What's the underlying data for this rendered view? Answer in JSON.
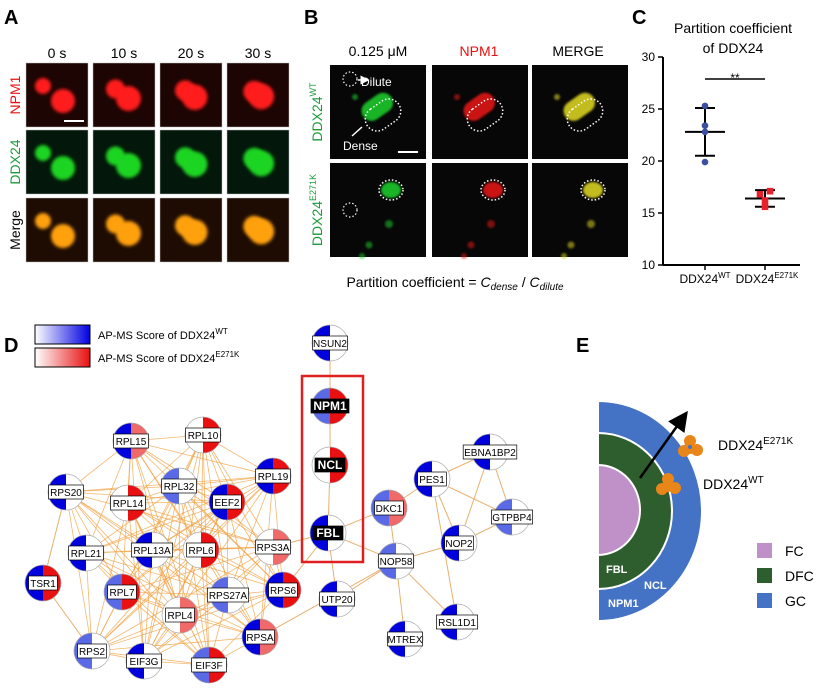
{
  "panel_labels": {
    "a": "A",
    "b": "B",
    "c": "C",
    "d": "D",
    "e": "E"
  },
  "panel_a": {
    "time_labels": [
      "0 s",
      "10 s",
      "20 s",
      "30 s"
    ],
    "row_labels": [
      "NPM1",
      "DDX24",
      "Merge"
    ]
  },
  "panel_b": {
    "column_headers": [
      "0.125 μM",
      "NPM1",
      "MERGE"
    ],
    "row_labels": [
      {
        "base": "DDX24",
        "sup": "WT"
      },
      {
        "base": "DDX24",
        "sup": "E271K"
      }
    ],
    "annotations": {
      "dilute": "Dilute",
      "dense": "Dense"
    },
    "formula": {
      "prefix": "Partition coefficient = ",
      "c": "C",
      "dense": "dense",
      "sep": " / ",
      "dilute": "dilute"
    }
  },
  "chart_data": {
    "type": "scatter",
    "title": [
      "Partition coefficient",
      "of DDX24"
    ],
    "categories": [
      {
        "base": "DDX24",
        "sup": "WT"
      },
      {
        "base": "DDX24",
        "sup": "E271K"
      }
    ],
    "series": [
      {
        "name": "DDX24 WT",
        "color": "#3b4fa0",
        "marker": "circle",
        "values": [
          25.3,
          23.4,
          22.8,
          19.9
        ],
        "mean": 22.8,
        "sd": [
          20.5,
          25.1
        ]
      },
      {
        "name": "DDX24 E271K",
        "color": "#e8202a",
        "marker": "square",
        "values": [
          17.1,
          16.8,
          16.2,
          15.6
        ],
        "mean": 16.4,
        "sd": [
          15.6,
          17.2
        ]
      }
    ],
    "ylim": [
      10,
      30
    ],
    "yticks": [
      10,
      15,
      20,
      25,
      30
    ],
    "significance": "**",
    "xlabel": "",
    "ylabel": ""
  },
  "network": {
    "legend": [
      {
        "text": "AP-MS Score of DDX24",
        "sup": "WT",
        "color": "#0000e0"
      },
      {
        "text": "AP-MS Score of DDX24",
        "sup": "E271K",
        "color": "#e81010"
      }
    ],
    "score_colors": {
      "wt": {
        "high": "#0000dd",
        "mid": "#5a6ae6",
        "none": "#ffffff"
      },
      "e271k": {
        "high": "#e81010",
        "mid": "#f06a6a",
        "none": "#ffffff"
      }
    },
    "highlighted": [
      "NPM1",
      "NCL",
      "FBL"
    ],
    "nodes": [
      {
        "id": "NSUN2",
        "wt": "high",
        "e271k": "none"
      },
      {
        "id": "NPM1",
        "wt": "mid",
        "e271k": "high"
      },
      {
        "id": "NCL",
        "wt": "none",
        "e271k": "high"
      },
      {
        "id": "FBL",
        "wt": "high",
        "e271k": "none"
      },
      {
        "id": "RPL15",
        "wt": "high",
        "e271k": "mid"
      },
      {
        "id": "RPL10",
        "wt": "none",
        "e271k": "high"
      },
      {
        "id": "RPL19",
        "wt": "high",
        "e271k": "high"
      },
      {
        "id": "RPS20",
        "wt": "high",
        "e271k": "none"
      },
      {
        "id": "RPL32",
        "wt": "mid",
        "e271k": "none"
      },
      {
        "id": "RPL14",
        "wt": "none",
        "e271k": "high"
      },
      {
        "id": "EEF2",
        "wt": "high",
        "e271k": "high"
      },
      {
        "id": "RPL21",
        "wt": "high",
        "e271k": "none"
      },
      {
        "id": "RPL13A",
        "wt": "high",
        "e271k": "none"
      },
      {
        "id": "RPL6",
        "wt": "none",
        "e271k": "high"
      },
      {
        "id": "RPS3A",
        "wt": "none",
        "e271k": "mid"
      },
      {
        "id": "TSR1",
        "wt": "high",
        "e271k": "high"
      },
      {
        "id": "RPL7",
        "wt": "mid",
        "e271k": "high"
      },
      {
        "id": "RPS27A",
        "wt": "mid",
        "e271k": "none"
      },
      {
        "id": "RPS6",
        "wt": "high",
        "e271k": "high"
      },
      {
        "id": "RPL4",
        "wt": "none",
        "e271k": "mid"
      },
      {
        "id": "RPSA",
        "wt": "high",
        "e271k": "mid"
      },
      {
        "id": "RPS2",
        "wt": "mid",
        "e271k": "none"
      },
      {
        "id": "EIF3G",
        "wt": "high",
        "e271k": "none"
      },
      {
        "id": "EIF3F",
        "wt": "mid",
        "e271k": "high"
      },
      {
        "id": "UTP20",
        "wt": "high",
        "e271k": "none"
      },
      {
        "id": "DKC1",
        "wt": "mid",
        "e271k": "mid"
      },
      {
        "id": "PES1",
        "wt": "high",
        "e271k": "none"
      },
      {
        "id": "EBNA1BP2",
        "wt": "high",
        "e271k": "none"
      },
      {
        "id": "GTPBP4",
        "wt": "mid",
        "e271k": "none"
      },
      {
        "id": "NOP2",
        "wt": "high",
        "e271k": "none"
      },
      {
        "id": "NOP58",
        "wt": "mid",
        "e271k": "none"
      },
      {
        "id": "RSL1D1",
        "wt": "high",
        "e271k": "none"
      },
      {
        "id": "MTREX",
        "wt": "high",
        "e271k": "none"
      }
    ],
    "dense_cluster": [
      "RPL15",
      "RPL10",
      "RPL19",
      "RPS20",
      "RPL32",
      "RPL14",
      "EEF2",
      "RPL21",
      "RPL13A",
      "RPL6",
      "RPS3A",
      "RPL7",
      "RPS27A",
      "RPS6",
      "RPL4",
      "RPSA",
      "RPS2",
      "EIF3G",
      "EIF3F"
    ],
    "edges": [
      [
        "NSUN2",
        "NPM1"
      ],
      [
        "NPM1",
        "NCL"
      ],
      [
        "NCL",
        "FBL"
      ],
      [
        "FBL",
        "UTP20"
      ],
      [
        "FBL",
        "DKC1"
      ],
      [
        "FBL",
        "NOP58"
      ],
      [
        "FBL",
        "RPS3A"
      ],
      [
        "FBL",
        "RPS6"
      ],
      [
        "UTP20",
        "NOP58"
      ],
      [
        "DKC1",
        "PES1"
      ],
      [
        "DKC1",
        "NOP58"
      ],
      [
        "PES1",
        "EBNA1BP2"
      ],
      [
        "PES1",
        "GTPBP4"
      ],
      [
        "PES1",
        "NOP2"
      ],
      [
        "PES1",
        "RSL1D1"
      ],
      [
        "EBNA1BP2",
        "NOP2"
      ],
      [
        "EBNA1BP2",
        "GTPBP4"
      ],
      [
        "NOP2",
        "GTPBP4"
      ],
      [
        "NOP2",
        "NOP58"
      ],
      [
        "NOP58",
        "MTREX"
      ],
      [
        "NOP58",
        "RSL1D1"
      ],
      [
        "NOP58",
        "RPSA"
      ],
      [
        "TSR1",
        "RPS20"
      ],
      [
        "TSR1",
        "RPS2"
      ]
    ]
  },
  "panel_e": {
    "region_labels": {
      "fbl": "FBL",
      "ncl": "NCL",
      "npm1": "NPM1"
    },
    "mutant_label": {
      "base": "DDX24",
      "sup": "E271K"
    },
    "wt_label": {
      "base": "DDX24",
      "sup": "WT"
    },
    "legend": [
      {
        "label": "FC",
        "color": "#c090c8"
      },
      {
        "label": "DFC",
        "color": "#2e5e2e"
      },
      {
        "label": "GC",
        "color": "#4472c4"
      }
    ],
    "protein_color": "#e8861a"
  }
}
